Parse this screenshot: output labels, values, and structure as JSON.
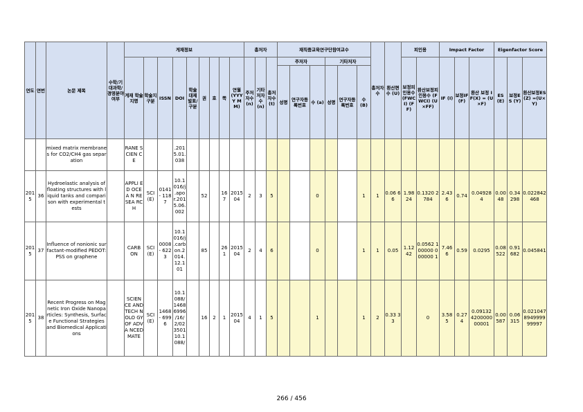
{
  "header": {
    "groups": {
      "pub_info": "게재정보",
      "authors": "총저자",
      "faculty": "재직중교육연구단참여교수",
      "citation": "피인용",
      "impact_factor": "Impact Factor",
      "eigenfactor": "Eigenfactor Score"
    },
    "subgroups": {
      "main_author": "주저자",
      "co_author": "기타저자"
    },
    "cols": {
      "year": "연도",
      "no": "연번",
      "title": "논문 제목",
      "flag": "수학/기대과학/경영분야여부",
      "journal": "게재 학술지명",
      "category": "학술지구분",
      "issn": "ISSN",
      "doi": "DOI",
      "index": "학술대제발표/구분",
      "vol": "권",
      "issue": "호",
      "page": "쪽",
      "date": "연월 (YYYY MM)",
      "main_count": "주저자수 (n)",
      "other_count": "기타저자수 (n)",
      "total_count": "총저자수 (t)",
      "m_name": "성명",
      "m_reg": "연구자등록번호",
      "m_n": "수 (a)",
      "c_name": "성명",
      "c_reg": "연구자등록번호",
      "c_n": "수 (B)",
      "total_faculty": "총저자수",
      "converted": "환산편수 (U)",
      "fwci": "보정피인용수 (FWCI) (FF)",
      "conv_fwci": "환산보정피인용수 (FWCI) (U×FF)",
      "if": "IF (I)",
      "if_adj": "보정IF (F)",
      "if_conv": "환산 보정 IF(X) = (U×F)",
      "es": "ES (E)",
      "es_adj": "보정ES (Y)",
      "es_conv": "환산보정ES(Z) =(U×Y)"
    }
  },
  "rows": [
    {
      "year": "",
      "no": "",
      "title": "mixed matrix membranes for CO2/CH4 gas separation",
      "journal": "RANE SCIEN CE",
      "category": "",
      "issn": "",
      "doi": ".201 5.01. 038",
      "vol": "",
      "issue": "",
      "page": "",
      "date": "",
      "main": "",
      "other": "",
      "total": "",
      "m_n": "",
      "c_n": "",
      "total_faculty": "",
      "converted": "",
      "fwci": "",
      "conv_fwci": "",
      "if": "",
      "if_adj": "",
      "if_conv": "",
      "es": "",
      "es_adj": "",
      "es_conv": ""
    },
    {
      "year": "2015",
      "no": "36",
      "title": "Hydroelastic analysis of floating structures with liquid tanks and comparison with experimental tests",
      "journal": "APPLI ED OCEA N RESEA RCH",
      "category": "SCI(E)",
      "issn": "0141 - 1187",
      "doi": "10.1 016/j .apo r.201 5.06. 002",
      "vol": "52",
      "issue": "",
      "page": "16 7",
      "date": "2015 04",
      "main": "2",
      "other": "3",
      "total": "5",
      "m_n": "0",
      "c_n": "1",
      "total_faculty": "1",
      "converted": "0.06 66",
      "fwci": "1.98 24",
      "conv_fwci": "0.1320 2784",
      "if": "2.43 6",
      "if_adj": "0.74",
      "if_conv": "0.04928 4",
      "es": "0.00 48",
      "es_adj": "0.34 298",
      "es_conv": "0.022842 468"
    },
    {
      "year": "2015",
      "no": "37",
      "title": "Influence of nonionic surfactant-modified PEDOT: PSS on graphene",
      "journal": "CARB ON",
      "category": "SCI(E)",
      "issn": "0008 - 6223",
      "doi": "10.1 016/j .carb on.2 014. 12.1 01",
      "vol": "85",
      "issue": "",
      "page": "26 1",
      "date": "2015 04",
      "main": "2",
      "other": "4",
      "total": "6",
      "m_n": "0",
      "c_n": "1",
      "total_faculty": "1",
      "converted": "0.05",
      "fwci": "1.12 42",
      "conv_fwci": "0.0562 100000 000000 1",
      "if": "7.46 6",
      "if_adj": "0.59",
      "if_conv": "0.0295",
      "es": "0.08 522",
      "es_adj": "0.91 682",
      "es_conv": "0.045841"
    },
    {
      "year": "2015",
      "no": "38",
      "title": "Recent Progress on Magnetic Iron Oxide Nanoparticles: Synthesis, Surface Functional Strategies and Biomedical Applications",
      "journal": "SCIEN CE AND TECH NOLO GY OF ADVA NCED MATE",
      "category": "SCI(E)",
      "issn": "1468 - 6996",
      "doi": "10.1 088/ 1468 6996 /16/ 2/02 3501 10.1 088/",
      "vol": "16",
      "issue": "2",
      "page": "1",
      "date": "2015 04",
      "main": "4",
      "other": "1",
      "total": "5",
      "m_n": "1",
      "c_n": "1",
      "total_faculty": "2",
      "converted": "0.33 33",
      "fwci": "",
      "conv_fwci": "0",
      "if": "3.58 5",
      "if_adj": "0.27 4",
      "if_conv": "0.09132 4200000 00001",
      "es": "0.00 587",
      "es_adj": "0.06 315",
      "es_conv": "0.021047 8949999 99997"
    }
  ],
  "footer": {
    "page": "266 / 456"
  }
}
